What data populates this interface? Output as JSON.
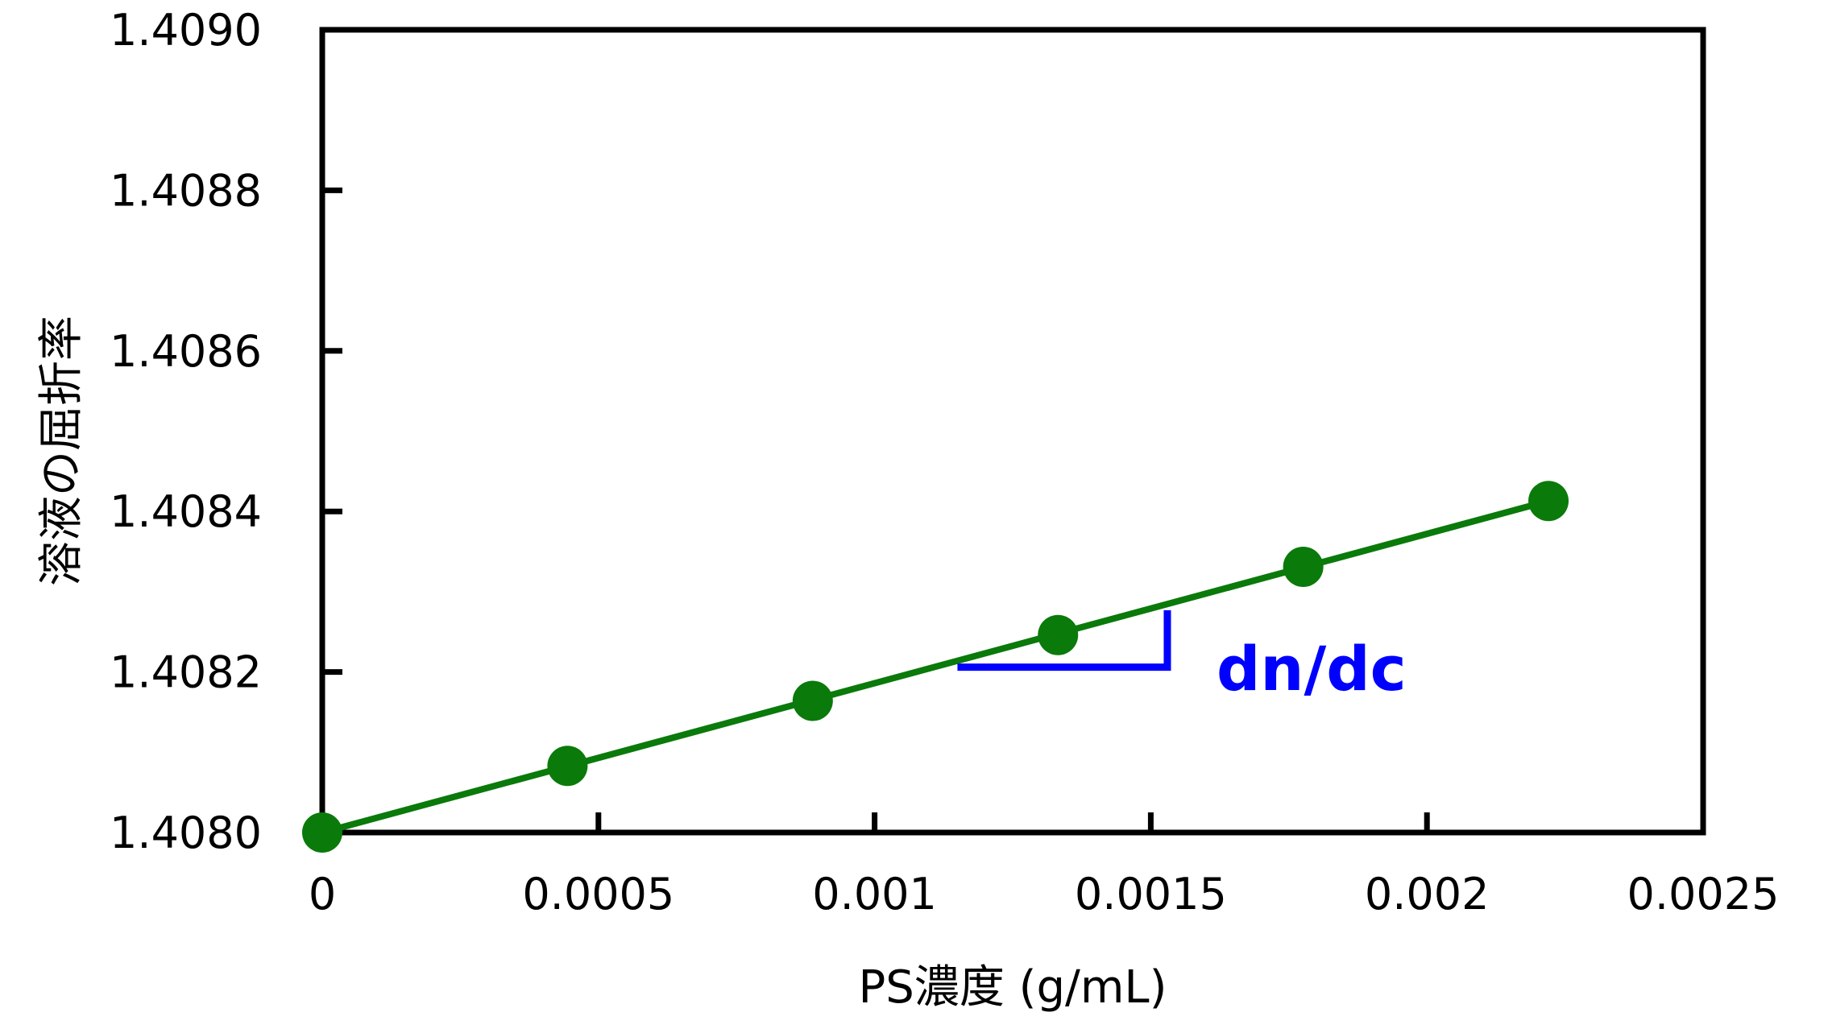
{
  "chart_data": {
    "type": "scatter",
    "title": "",
    "xlabel": "PS濃度 (g/mL)",
    "ylabel": "溶液の屈折率",
    "xlim": [
      0,
      0.0025
    ],
    "ylim": [
      1.408,
      1.409
    ],
    "x_ticks": [
      0,
      0.0005,
      0.001,
      0.0015,
      0.002,
      0.0025
    ],
    "x_tick_labels": [
      "0",
      "0.0005",
      "0.001",
      "0.0015",
      "0.002",
      "0.0025"
    ],
    "y_ticks": [
      1.408,
      1.4082,
      1.4084,
      1.4086,
      1.4088,
      1.409
    ],
    "y_tick_labels": [
      "1.4080",
      "1.4082",
      "1.4084",
      "1.4086",
      "1.4088",
      "1.4090"
    ],
    "grid": false,
    "series": [
      {
        "name": "data",
        "x": [
          0,
          0.000444,
          0.000888,
          0.001332,
          0.001776,
          0.00222
        ],
        "y": [
          1.408,
          1.408083,
          1.408164,
          1.408246,
          1.408331,
          1.408413
        ],
        "color": "#0a7a0a"
      }
    ],
    "fit_line": {
      "x": [
        0,
        0.00222
      ],
      "y": [
        1.408,
        1.408413
      ],
      "color": "#0a7a0a"
    },
    "annotation": {
      "text": "dn/dc",
      "color": "#0000ff",
      "slope_triangle": {
        "x": [
          0.00115,
          0.00153
        ],
        "y": [
          1.408206,
          1.408277
        ]
      }
    }
  }
}
